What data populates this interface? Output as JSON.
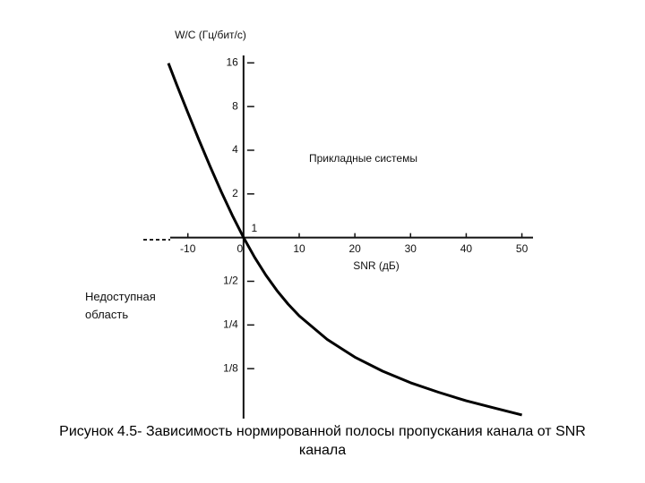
{
  "chart_data": {
    "type": "line",
    "title": "Рисунок 4.5- Зависимость нормированной полосы пропускания канала от SNR канала",
    "y_label": "W/C (Гц/бит/с)",
    "x_label": "SNR (дБ)",
    "annotations": [
      "Прикладные системы",
      "Недоступная область"
    ],
    "yscale": "log",
    "x": [
      -13.5,
      -12,
      -10,
      -8,
      -6,
      -4,
      -2,
      0,
      2,
      4,
      6,
      8,
      10,
      15,
      20,
      25,
      30,
      35,
      40,
      45,
      50
    ],
    "series": [
      {
        "color": "#000000",
        "values": [
          15.9,
          11.3,
          7.27,
          4.71,
          3.09,
          2.07,
          1.42,
          1,
          0.73,
          0.552,
          0.432,
          0.348,
          0.289,
          0.199,
          0.15,
          0.12,
          0.1,
          0.086,
          0.075,
          0.067,
          0.06
        ]
      }
    ],
    "xlim": [
      -18,
      52
    ],
    "ylim": [
      0.055,
      18
    ],
    "xticks": [
      -10,
      0,
      10,
      20,
      30,
      40,
      50
    ],
    "yticks": [
      {
        "value": 0.125,
        "label": "1/8"
      },
      {
        "value": 0.25,
        "label": "1/4"
      },
      {
        "value": 0.5,
        "label": "1/2"
      },
      1,
      2,
      4,
      8,
      16
    ]
  }
}
